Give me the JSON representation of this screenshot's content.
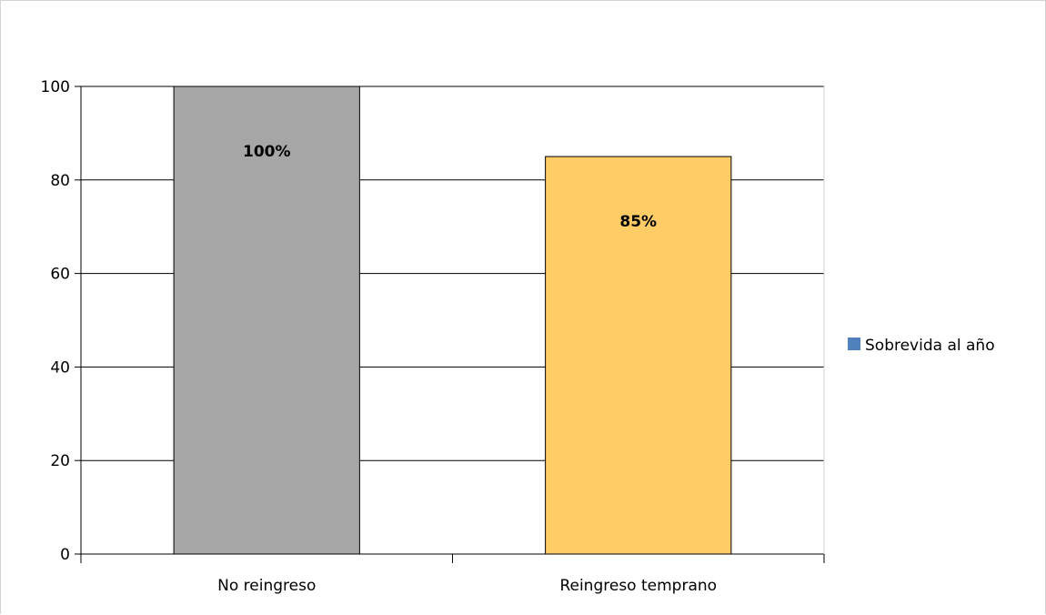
{
  "chart_data": {
    "type": "bar",
    "title": "",
    "xlabel": "",
    "ylabel": "",
    "categories": [
      "No reingreso",
      "Reingreso temprano"
    ],
    "series": [
      {
        "name": "Sobrevida al año",
        "values": [
          100,
          85
        ],
        "data_labels": [
          "100%",
          "85%"
        ],
        "colors": [
          "#a6a6a6",
          "#ffcc66"
        ]
      }
    ],
    "ylim": [
      0,
      100
    ],
    "yticks": [
      "0",
      "20",
      "40",
      "60",
      "80",
      "100"
    ],
    "grid": true,
    "legend": {
      "position": "right",
      "label": "Sobrevida al año",
      "color": "#4f81bd"
    }
  }
}
